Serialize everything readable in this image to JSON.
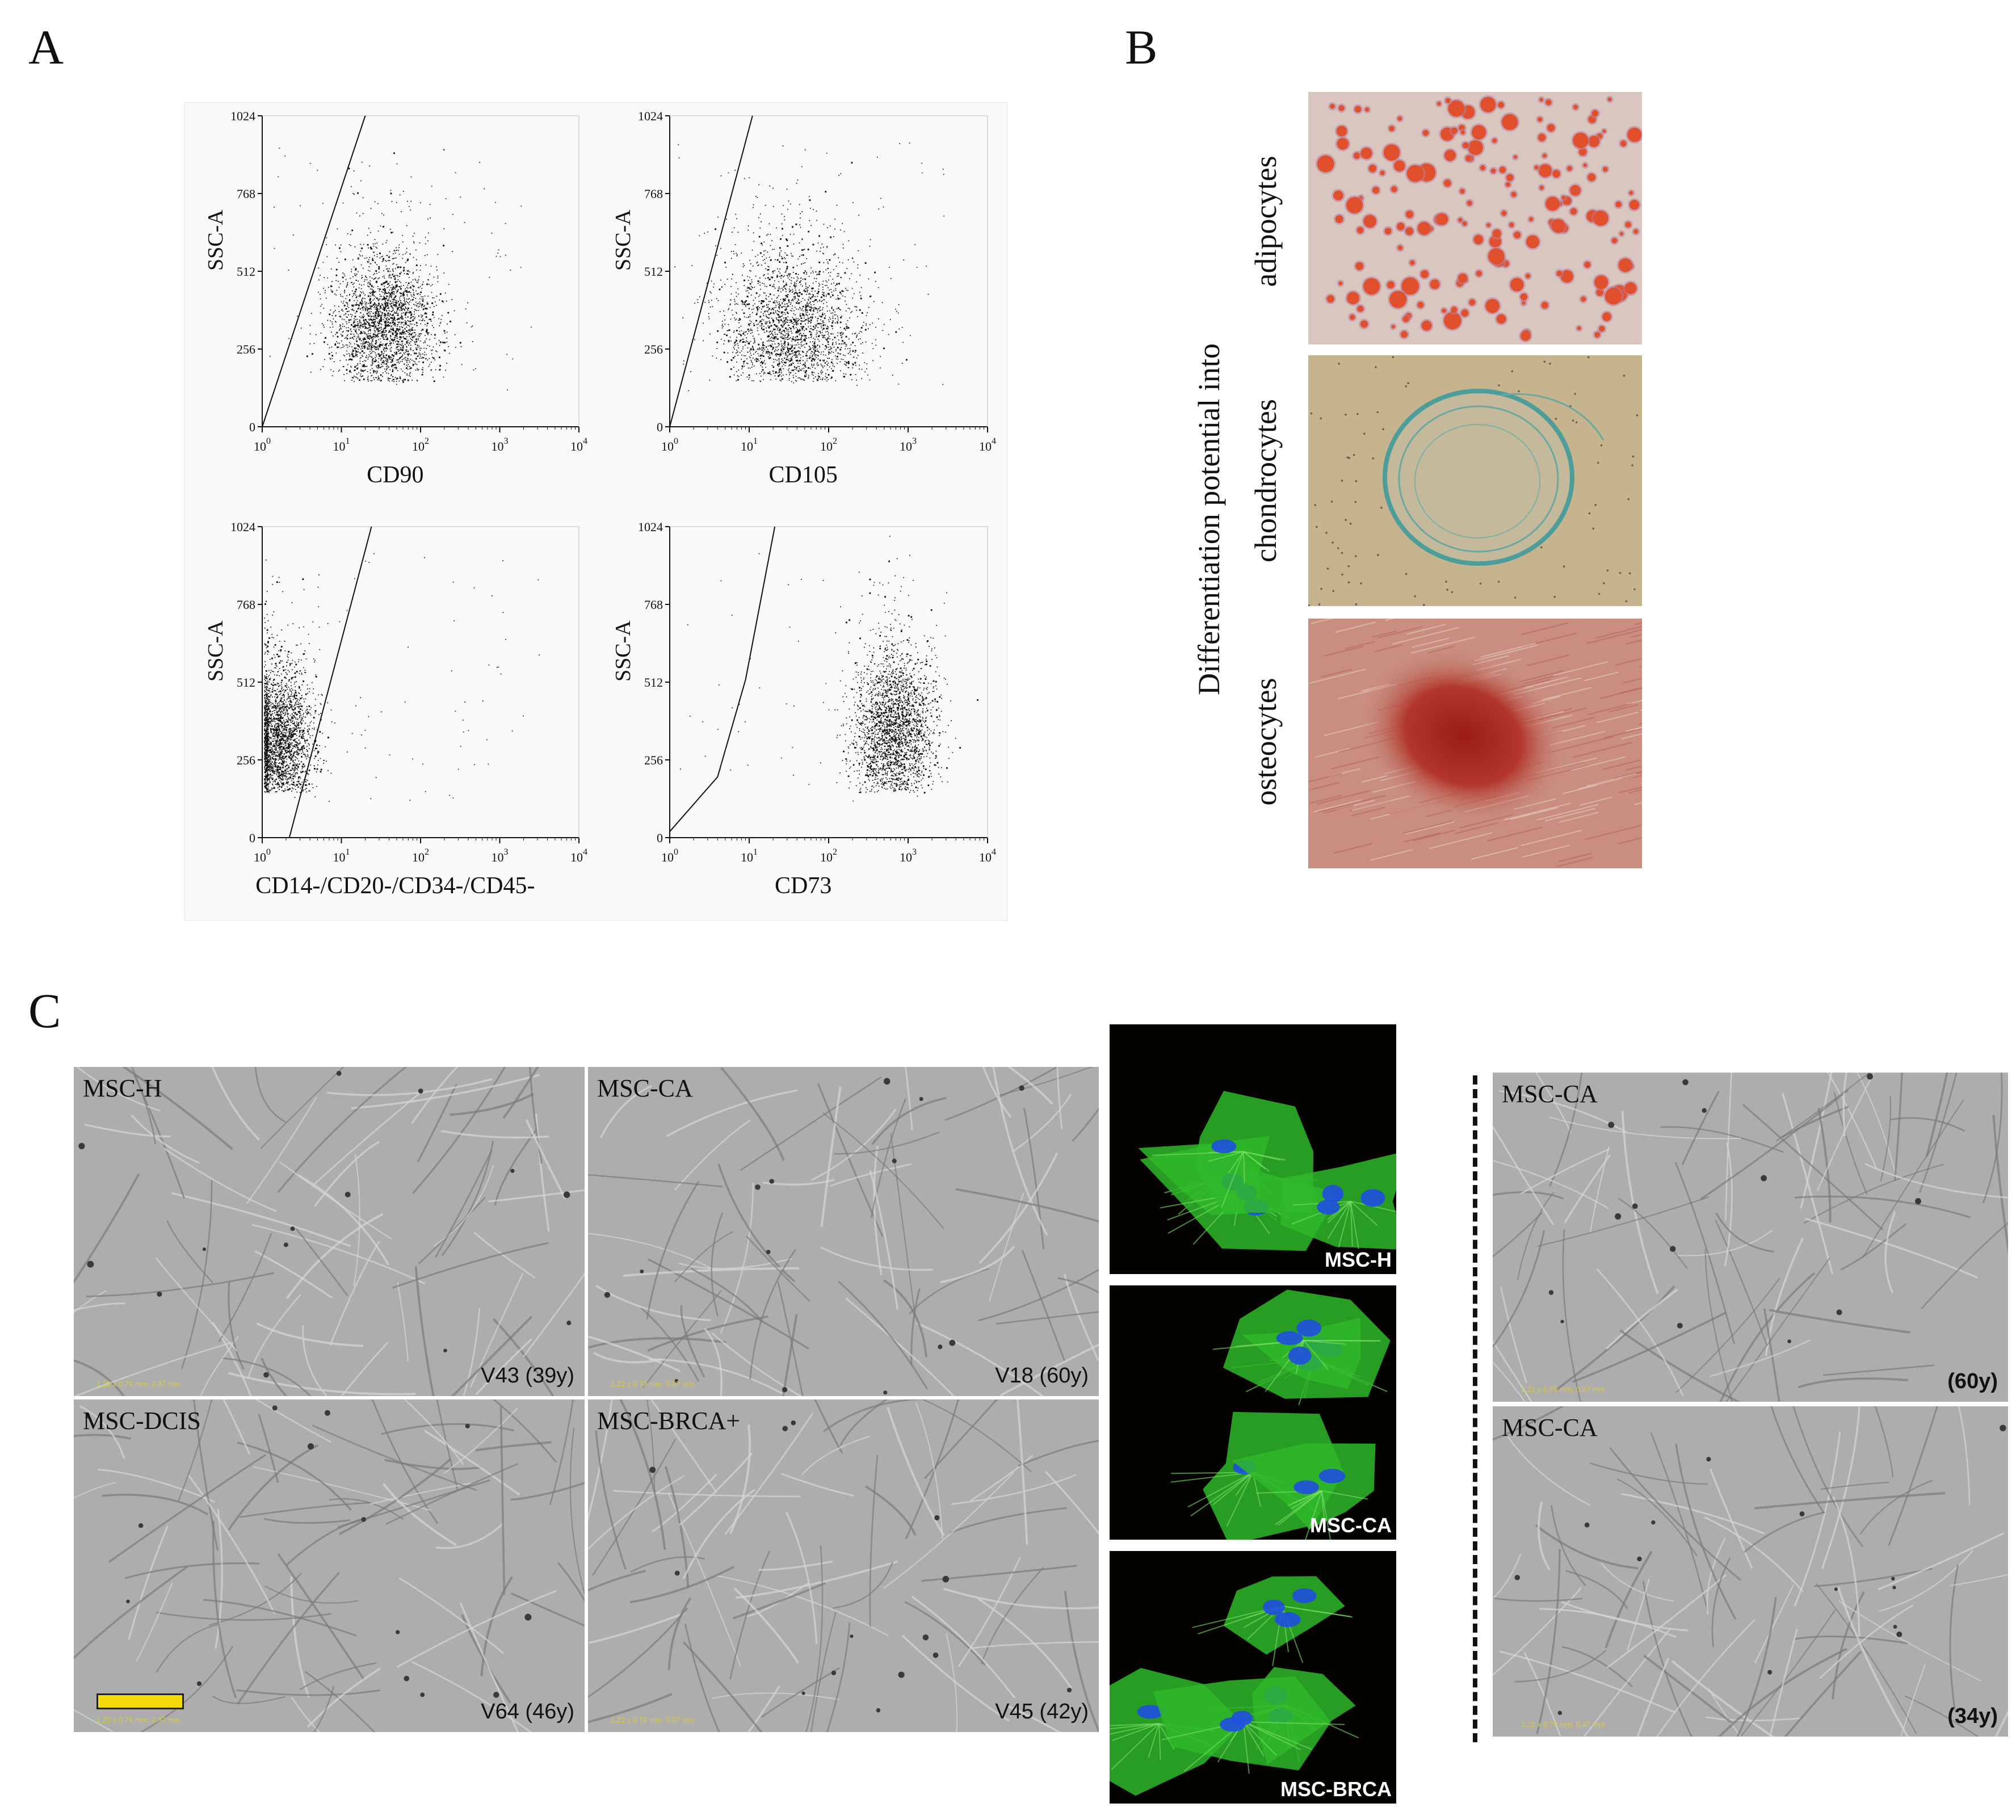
{
  "panel_letters": {
    "a": "A",
    "b": "B",
    "c": "C"
  },
  "chart_data": [
    {
      "type": "scatter",
      "title": "",
      "xlabel": "CD90",
      "ylabel": "SSC-A",
      "x_scale": "log",
      "xlim": [
        1,
        10000
      ],
      "ylim": [
        0,
        1024
      ],
      "x_ticks": [
        "10",
        "10",
        "10",
        "10",
        "10"
      ],
      "x_tick_exponents": [
        "0",
        "1",
        "2",
        "3",
        "4"
      ],
      "y_ticks": [
        "0",
        "256",
        "512",
        "768",
        "1024"
      ],
      "gate": [
        [
          1,
          0
        ],
        [
          20,
          1024
        ]
      ],
      "population": {
        "x_center": 35,
        "y_center": 330,
        "x_spread_decades": 0.33,
        "y_spread": 110
      }
    },
    {
      "type": "scatter",
      "title": "",
      "xlabel": "CD105",
      "ylabel": "SSC-A",
      "x_scale": "log",
      "xlim": [
        1,
        10000
      ],
      "ylim": [
        0,
        1024
      ],
      "x_ticks": [
        "10",
        "10",
        "10",
        "10",
        "10"
      ],
      "x_tick_exponents": [
        "0",
        "1",
        "2",
        "3",
        "4"
      ],
      "y_ticks": [
        "0",
        "256",
        "512",
        "768",
        "1024"
      ],
      "gate": [
        [
          1,
          0
        ],
        [
          11,
          1024
        ]
      ],
      "population": {
        "x_center": 35,
        "y_center": 310,
        "x_spread_decades": 0.45,
        "y_spread": 130
      }
    },
    {
      "type": "scatter",
      "title": "",
      "xlabel": "CD14-/CD20-/CD34-/CD45-",
      "ylabel": "SSC-A",
      "x_scale": "log",
      "xlim": [
        1,
        10000
      ],
      "ylim": [
        0,
        1024
      ],
      "x_ticks": [
        "10",
        "10",
        "10",
        "10",
        "10"
      ],
      "x_tick_exponents": [
        "0",
        "1",
        "2",
        "3",
        "4"
      ],
      "y_ticks": [
        "0",
        "256",
        "512",
        "768",
        "1024"
      ],
      "gate": [
        [
          2.2,
          0
        ],
        [
          24,
          1024
        ]
      ],
      "population": {
        "x_center": 1.6,
        "y_center": 320,
        "x_spread_decades": 0.22,
        "y_spread": 120
      }
    },
    {
      "type": "scatter",
      "title": "",
      "xlabel": "CD73",
      "ylabel": "SSC-A",
      "x_scale": "log",
      "xlim": [
        1,
        10000
      ],
      "ylim": [
        0,
        1024
      ],
      "x_ticks": [
        "10",
        "10",
        "10",
        "10",
        "10"
      ],
      "x_tick_exponents": [
        "0",
        "1",
        "2",
        "3",
        "4"
      ],
      "y_ticks": [
        "0",
        "256",
        "512",
        "768",
        "1024"
      ],
      "gate": [
        [
          1,
          20
        ],
        [
          4,
          200
        ],
        [
          9,
          520
        ],
        [
          21,
          1024
        ]
      ],
      "population": {
        "x_center": 650,
        "y_center": 350,
        "x_spread_decades": 0.25,
        "y_spread": 130
      }
    }
  ],
  "panel_b": {
    "axis_label": "Differentiation potential into",
    "rows": [
      {
        "label": "adipocytes",
        "color": "#d8c4bc"
      },
      {
        "label": "chondrocytes",
        "color": "#c6b48e"
      },
      {
        "label": "osteocytes",
        "color": "#c98b7c"
      }
    ]
  },
  "panel_c": {
    "brightfield": [
      {
        "name": "MSC-H",
        "id": "V43 (39y)"
      },
      {
        "name": "MSC-CA",
        "id": "V18 (60y)"
      },
      {
        "name": "MSC-DCIS",
        "id": "V64 (46y)"
      },
      {
        "name": "MSC-BRCA+",
        "id": "V45 (42y)"
      }
    ],
    "fluorescence": [
      {
        "label": "MSC-H"
      },
      {
        "label": "MSC-CA"
      },
      {
        "label": "MSC-BRCA"
      }
    ],
    "right_column": [
      {
        "name": "MSC-CA",
        "id": "(60y)"
      },
      {
        "name": "MSC-CA",
        "id": "(34y)"
      }
    ],
    "scale_text": "1.22 x 0.79 mm: 0.97 mm",
    "scale_value": "200",
    "scale_unit": "μm"
  },
  "colors": {
    "stain_green": "#2fb829",
    "nucleus_blue": "#1f4fe0",
    "brightfield_gray": "#ababab",
    "scale_yellow": "#f5d90a"
  }
}
